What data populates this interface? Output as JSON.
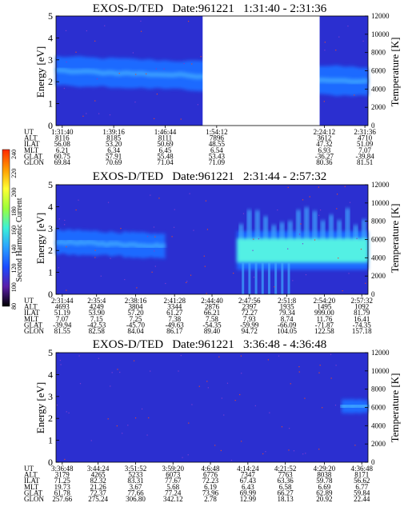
{
  "colors": {
    "background": "#2b2fd0",
    "band": "#1a6aff",
    "band_core": "#3fa8ff",
    "hot": "#53f0e4",
    "gap": "#ffffff",
    "speck": "#d9493a"
  },
  "colorbar": {
    "label": "Second Harmonic Current",
    "ticks": [
      "240",
      "220",
      "200",
      "180",
      "160",
      "140",
      "120",
      "100",
      "80"
    ],
    "stops": [
      "#ff2a00",
      "#ff9a00",
      "#ffff33",
      "#9cff3a",
      "#3cf0d8",
      "#2aa0ff",
      "#1c4bff",
      "#5a1ea8",
      "#000000"
    ]
  },
  "chart_data": [
    {
      "type": "heatmap",
      "title": "EXOS-D/TED   Date:961221   1:31:40 - 2:31:36",
      "ylabel": "Energy [eV]",
      "ylabel_right": "Temperature [K]",
      "ylim": [
        0,
        5
      ],
      "y_ticks": [
        "0",
        "1",
        "2",
        "3",
        "4",
        "5"
      ],
      "ylim_right": [
        0,
        12000
      ],
      "y_ticks_right": [
        "0",
        "2000",
        "4000",
        "6000",
        "8000",
        "10000",
        "12000"
      ],
      "data_gap": {
        "start_fraction": 0.47,
        "end_fraction": 0.845
      },
      "band": {
        "start_fraction": 0.0,
        "end_fraction": 1.0,
        "center_ev_start": 2.5,
        "center_ev_end": 2.0,
        "half_width_ev": 0.65
      },
      "hot": [],
      "table": {
        "labels": [
          "UT",
          "ALT",
          "ILAT",
          "MLT",
          "GLAT",
          "GLON"
        ],
        "columns": [
          {
            "pos": 0.02,
            "values": [
              "1:31:40",
              "8116",
              "56.08",
              "6.21",
              "60.75",
              "69.84"
            ]
          },
          {
            "pos": 0.185,
            "values": [
              "1:39:16",
              "8185",
              "53.20",
              "6.34",
              "57.91",
              "70.69"
            ]
          },
          {
            "pos": 0.35,
            "values": [
              "1:46:44",
              "8111",
              "50.69",
              "6.45",
              "55.48",
              "71.04"
            ]
          },
          {
            "pos": 0.515,
            "values": [
              "1:54:12",
              "7896",
              "48.55",
              "6.54",
              "53.43",
              "71.09"
            ]
          },
          {
            "pos": 0.86,
            "values": [
              "2:24:12",
              "3612",
              "47.32",
              "6.93",
              "-36.27",
              "80.36"
            ]
          },
          {
            "pos": 0.99,
            "values": [
              "2:31:36",
              "4710",
              "51.09",
              "7.07",
              "-39.84",
              "81.51"
            ]
          }
        ]
      }
    },
    {
      "type": "heatmap",
      "title": "EXOS-D/TED   Date:961221   2:31:44 - 2:57:32",
      "ylabel": "Energy [eV]",
      "ylabel_right": "Temperature [K]",
      "ylim": [
        0,
        5
      ],
      "y_ticks": [
        "0",
        "1",
        "2",
        "3",
        "4",
        "5"
      ],
      "ylim_right": [
        0,
        12000
      ],
      "y_ticks_right": [
        "0",
        "2000",
        "4000",
        "6000",
        "8000",
        "10000",
        "12000"
      ],
      "data_gap": null,
      "band": {
        "start_fraction": 0.0,
        "end_fraction": 0.35,
        "center_ev_start": 2.4,
        "center_ev_end": 2.2,
        "half_width_ev": 0.55
      },
      "hot": [
        {
          "start_fraction": 0.58,
          "end_fraction": 1.0,
          "center_ev": 2.0,
          "half_width_ev": 0.55
        }
      ],
      "table": {
        "labels": [
          "UT",
          "ALT",
          "ILAT",
          "MLT",
          "GLAT",
          "GLON"
        ],
        "columns": [
          {
            "pos": 0.02,
            "values": [
              "2:31:44",
              "4693",
              "51.19",
              "7.07",
              "-39.94",
              "81.55"
            ]
          },
          {
            "pos": 0.13,
            "values": [
              "2:35:4",
              "4249",
              "53.90",
              "7.15",
              "-42.53",
              "82.58"
            ]
          },
          {
            "pos": 0.255,
            "values": [
              "2:38:16",
              "3804",
              "57.20",
              "7.25",
              "-45.70",
              "84.04"
            ]
          },
          {
            "pos": 0.38,
            "values": [
              "2:41:28",
              "3344",
              "61.27",
              "7.38",
              "-49.63",
              "86.17"
            ]
          },
          {
            "pos": 0.5,
            "values": [
              "2:44:40",
              "2876",
              "66.21",
              "7.58",
              "-54.35",
              "89.40"
            ]
          },
          {
            "pos": 0.62,
            "values": [
              "2:47:56",
              "2397",
              "72.27",
              "7.93",
              "-59.99",
              "94.72"
            ]
          },
          {
            "pos": 0.74,
            "values": [
              "2:51:8",
              "1935",
              "79.34",
              "8.74",
              "-66.09",
              "104.05"
            ]
          },
          {
            "pos": 0.86,
            "values": [
              "2:54:20",
              "1495",
              "999.00",
              "11.76",
              "-71.87",
              "122.58"
            ]
          },
          {
            "pos": 0.98,
            "values": [
              "2:57:32",
              "1092",
              "81.79",
              "16.41",
              "-74.35",
              "157.18"
            ]
          }
        ]
      }
    },
    {
      "type": "heatmap",
      "title": "EXOS-D/TED   Date:961221   3:36:48 - 4:36:48",
      "ylabel": "Energy [eV]",
      "ylabel_right": "Temperature [K]",
      "ylim": [
        0,
        5
      ],
      "y_ticks": [
        "0",
        "1",
        "2",
        "3",
        "4",
        "5"
      ],
      "ylim_right": [
        0,
        12000
      ],
      "y_ticks_right": [
        "0",
        "2000",
        "4000",
        "6000",
        "8000",
        "10000",
        "12000"
      ],
      "data_gap": null,
      "band": {
        "start_fraction": 0.915,
        "end_fraction": 1.0,
        "center_ev_start": 2.55,
        "center_ev_end": 2.55,
        "half_width_ev": 0.3
      },
      "hot": [],
      "table": {
        "labels": [
          "UT",
          "ALT",
          "ILAT",
          "MLT",
          "GLAT",
          "GLON"
        ],
        "columns": [
          {
            "pos": 0.02,
            "values": [
              "3:36:48",
              "3179",
              "71.25",
              "19.73",
              "61.78",
              "257.66"
            ]
          },
          {
            "pos": 0.135,
            "values": [
              "3:44:24",
              "4265",
              "82.32",
              "21.26",
              "72.37",
              "275.24"
            ]
          },
          {
            "pos": 0.255,
            "values": [
              "3:51:52",
              "5233",
              "83.31",
              "3.67",
              "77.66",
              "306.80"
            ]
          },
          {
            "pos": 0.375,
            "values": [
              "3:59:20",
              "6073",
              "77.67",
              "5.68",
              "77.24",
              "342.12"
            ]
          },
          {
            "pos": 0.495,
            "values": [
              "4:6:48",
              "6776",
              "72.23",
              "6.19",
              "73.96",
              "2.78"
            ]
          },
          {
            "pos": 0.615,
            "values": [
              "4:14:24",
              "7347",
              "67.43",
              "6.43",
              "69.99",
              "12.99"
            ]
          },
          {
            "pos": 0.735,
            "values": [
              "4:21:52",
              "7763",
              "63.36",
              "6.58",
              "66.27",
              "18.13"
            ]
          },
          {
            "pos": 0.86,
            "values": [
              "4:29:20",
              "8038",
              "59.78",
              "6.69",
              "62.89",
              "20.92"
            ]
          },
          {
            "pos": 0.98,
            "values": [
              "4:36:48",
              "8171",
              "56.62",
              "6.77",
              "59.84",
              "22.44"
            ]
          }
        ]
      }
    }
  ]
}
